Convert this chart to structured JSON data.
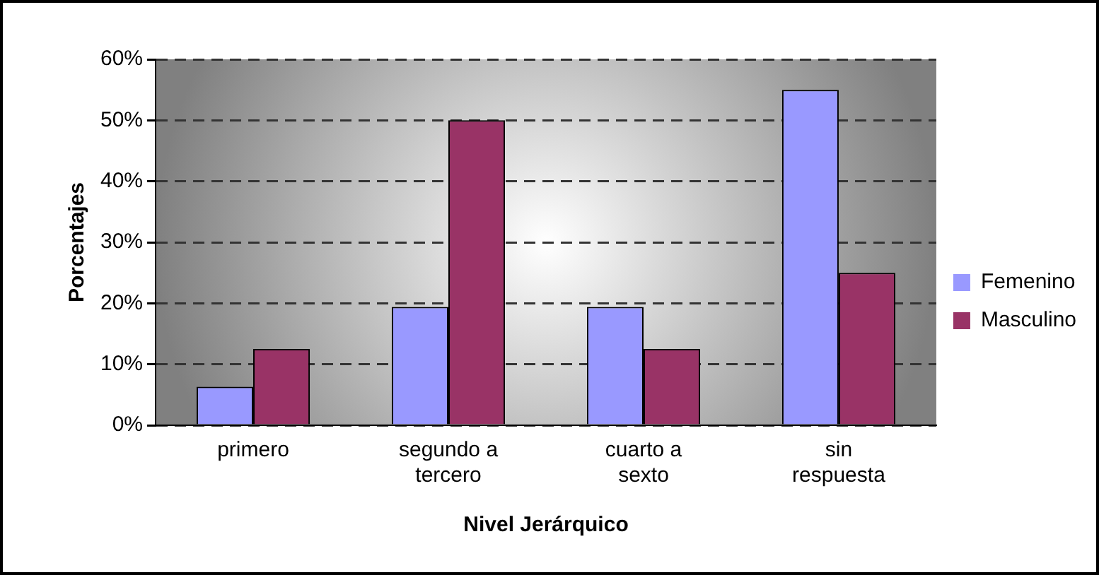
{
  "chart_data": {
    "type": "bar",
    "xlabel": "Nivel Jerárquico",
    "ylabel": "Porcentajes",
    "categories": [
      "primero",
      "segundo a\ntercero",
      "cuarto a\nsexto",
      "sin\nrespuesta"
    ],
    "series": [
      {
        "name": "Femenino",
        "color": "#9999ff",
        "values": [
          6.3,
          19.4,
          19.4,
          55
        ]
      },
      {
        "name": "Masculino",
        "color": "#993366",
        "values": [
          12.5,
          50,
          12.5,
          25
        ]
      }
    ],
    "ylim": [
      0,
      60
    ],
    "yticks": [
      {
        "value": 0,
        "label": "0%"
      },
      {
        "value": 10,
        "label": "10%"
      },
      {
        "value": 20,
        "label": "20%"
      },
      {
        "value": 30,
        "label": "30%"
      },
      {
        "value": 40,
        "label": "40%"
      },
      {
        "value": 50,
        "label": "50%"
      },
      {
        "value": 60,
        "label": "60%"
      }
    ],
    "grid": "y",
    "legend": "right",
    "line_style": "dashed"
  }
}
